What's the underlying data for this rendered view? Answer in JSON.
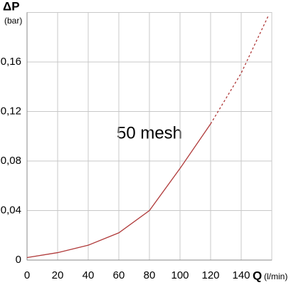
{
  "chart_data": {
    "type": "line",
    "y_label": "ΔP",
    "y_unit": "(bar)",
    "x_label": "Q",
    "x_unit": "(l/min)",
    "annotation": "50 mesh",
    "series": [
      {
        "x": [
          0,
          20,
          40,
          60,
          80,
          100,
          120
        ],
        "values": [
          0.002,
          0.006,
          0.012,
          0.022,
          0.04,
          0.074,
          0.11
        ],
        "color": "#b03a3a",
        "dashed": false
      },
      {
        "x": [
          120,
          140,
          158
        ],
        "values": [
          0.11,
          0.151,
          0.198
        ],
        "color": "#b03a3a",
        "dashed": true
      }
    ],
    "xlim": [
      0,
      160
    ],
    "xticks": [
      0,
      20,
      40,
      60,
      80,
      100,
      120,
      140
    ],
    "ylim": [
      0,
      0.2
    ],
    "yticks": [
      {
        "value": 0,
        "label": "0"
      },
      {
        "value": 0.04,
        "label": "0,04"
      },
      {
        "value": 0.08,
        "label": "0,08"
      },
      {
        "value": 0.12,
        "label": "0,12"
      },
      {
        "value": 0.16,
        "label": "0,16"
      }
    ],
    "grid": true
  }
}
